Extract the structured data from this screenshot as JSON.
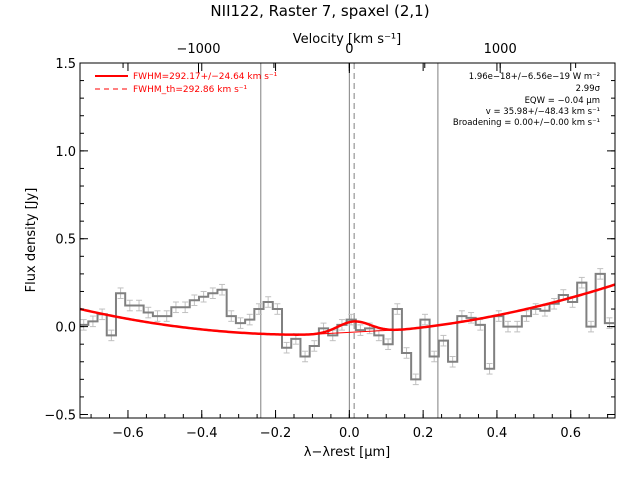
{
  "chart_data": {
    "type": "line",
    "title": "NII122, Raster 7, spaxel (2,1)",
    "xlabel": "λ−λrest [μm]",
    "ylabel": "Flux density [Jy]",
    "top_axis_label": "Velocity [km s⁻¹]",
    "xlim": [
      -0.73,
      0.72
    ],
    "ylim": [
      -0.52,
      1.5
    ],
    "x_ticks": [
      -0.6,
      -0.4,
      -0.2,
      0.0,
      0.2,
      0.4,
      0.6
    ],
    "x_tick_labels": [
      "−0.6",
      "−0.4",
      "−0.2",
      "0.0",
      "0.2",
      "0.4",
      "0.6"
    ],
    "y_ticks": [
      -0.5,
      0.0,
      0.5,
      1.0,
      1.5
    ],
    "y_tick_labels": [
      "−0.5",
      "0.0",
      "0.5",
      "1.0",
      "1.5"
    ],
    "top_tick_labels": [
      "−1000",
      "0",
      "1000"
    ],
    "legend": {
      "placement": "top-left",
      "entries": [
        {
          "label": "FWHM=292.17+/−24.64 km s⁻¹",
          "style": "solid",
          "color": "#ff0000"
        },
        {
          "label": "FWHM_th=292.86 km s⁻¹",
          "style": "dashed",
          "color": "#ff0000"
        }
      ]
    },
    "annotations": [
      "1.96e−18+/−6.56e−19 W m⁻²",
      "2.99σ",
      "EQW = −0.04 μm",
      "v = 35.98+/−48.43 km s⁻¹",
      "Broadening = 0.00+/−0.00 km s⁻¹"
    ],
    "vertical_lines": [
      -0.24,
      0.0,
      0.24
    ],
    "dashed_vertical_line": 0.013,
    "colors": {
      "spectrum": "#808080",
      "error_bars": "#c0c0c0",
      "fit": "#ff0000",
      "vline": "#808080"
    },
    "series": [
      {
        "x": [
          -0.72,
          -0.695,
          -0.67,
          -0.645,
          -0.62,
          -0.595,
          -0.57,
          -0.545,
          -0.52,
          -0.495,
          -0.47,
          -0.445,
          -0.42,
          -0.395,
          -0.37,
          -0.345,
          -0.32,
          -0.295,
          -0.27,
          -0.245,
          -0.22,
          -0.195,
          -0.17,
          -0.145,
          -0.12,
          -0.095,
          -0.07,
          -0.045,
          -0.02,
          0.005,
          0.03,
          0.055,
          0.08,
          0.105,
          0.13,
          0.155,
          0.18,
          0.205,
          0.23,
          0.255,
          0.28,
          0.305,
          0.33,
          0.355,
          0.38,
          0.405,
          0.43,
          0.455,
          0.48,
          0.505,
          0.53,
          0.555,
          0.58,
          0.605,
          0.63,
          0.655,
          0.68,
          0.705
        ],
        "y": [
          0.01,
          0.03,
          0.07,
          -0.05,
          0.19,
          0.12,
          0.12,
          0.08,
          0.06,
          0.06,
          0.11,
          0.11,
          0.15,
          0.17,
          0.19,
          0.21,
          0.06,
          0.02,
          0.04,
          0.1,
          0.14,
          0.1,
          -0.12,
          -0.07,
          -0.17,
          -0.11,
          -0.01,
          -0.05,
          0.01,
          0.04,
          -0.02,
          -0.01,
          -0.05,
          -0.1,
          0.1,
          -0.15,
          -0.3,
          0.04,
          -0.17,
          -0.08,
          -0.2,
          0.06,
          0.05,
          0.01,
          -0.24,
          0.06,
          0.0,
          0.0,
          0.06,
          0.1,
          0.09,
          0.13,
          0.18,
          0.14,
          0.25,
          0.0,
          0.3,
          0.02
        ]
      },
      {
        "name": "FWHM=292.17+/−24.64 km s⁻¹",
        "model": "quadratic baseline + gaussian",
        "baseline_coeffs": [
          -0.04,
          0.1,
          0.4
        ],
        "gaussian": {
          "center": 0.013,
          "amplitude": 0.068,
          "sigma": 0.045
        }
      }
    ]
  }
}
